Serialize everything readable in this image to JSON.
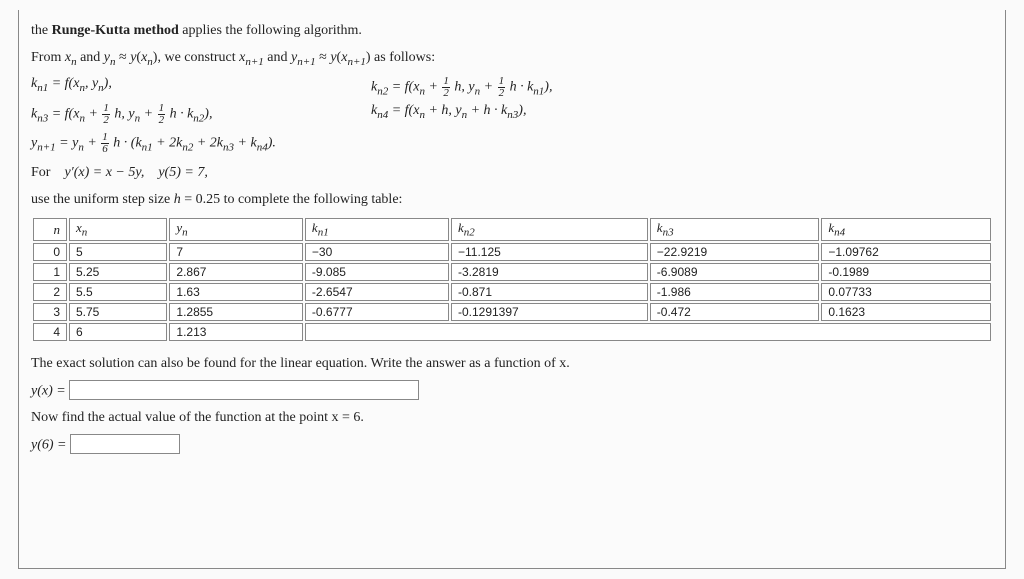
{
  "intro": {
    "line1_pre": "the ",
    "line1_bold": "Runge-Kutta method",
    "line1_post": " applies the following algorithm.",
    "line2": "From xₙ and yₙ ≈ y(xₙ), we construct xₙ₊₁ and yₙ₊₁ ≈ y(xₙ₊₁) as follows:"
  },
  "equations": {
    "k1": "kₙ₁ = f(xₙ, yₙ),",
    "k2": "kₙ₂ = f(xₙ + ½h, yₙ + ½h·kₙ₁),",
    "k3": "kₙ₃ = f(xₙ + ½h, yₙ + ½h·kₙ₂),",
    "k4": "kₙ₄ = f(xₙ + h, yₙ + h·kₙ₃),",
    "ynext": "yₙ₊₁ = yₙ + ⅙h·(kₙ₁ + 2kₙ₂ + 2kₙ₃ + kₙ₄)."
  },
  "problem": {
    "for_line": "For    y′(x) = x − 5y,   y(5) = 7,",
    "use_line": "use the uniform step size h = 0.25 to complete the following table:"
  },
  "table": {
    "headers": [
      "n",
      "xₙ",
      "yₙ",
      "kₙ₁",
      "kₙ₂",
      "kₙ₃",
      "kₙ₄"
    ],
    "rows": [
      [
        "0",
        "5",
        "7",
        "−30",
        "−11.125",
        "−22.9219",
        "−1.09762"
      ],
      [
        "1",
        "5.25",
        "2.867",
        "-9.085",
        "-3.2819",
        "-6.9089",
        "-0.1989"
      ],
      [
        "2",
        "5.5",
        "1.63",
        "-2.6547",
        "-0.871",
        "-1.986",
        "0.07733"
      ],
      [
        "3",
        "5.75",
        "1.2855",
        "-0.6777",
        "-0.1291397",
        "-0.472",
        "0.1623"
      ],
      [
        "4",
        "6",
        "1.213",
        "",
        "",
        "",
        ""
      ]
    ]
  },
  "exact": {
    "line": "The exact solution can also be found for the linear equation. Write the answer as a function of x.",
    "label": "y(x) = "
  },
  "actual": {
    "line": "Now find the actual value of the function at the point x = 6.",
    "label": "y(6) = "
  },
  "colors": {
    "text": "#222222",
    "border": "#888888",
    "bg": "#fbfbfb",
    "cell_bg": "#ffffff"
  },
  "fonts": {
    "body": "Georgia, Times New Roman, serif",
    "table": "Arial, sans-serif",
    "body_size": 14,
    "table_size": 12
  }
}
